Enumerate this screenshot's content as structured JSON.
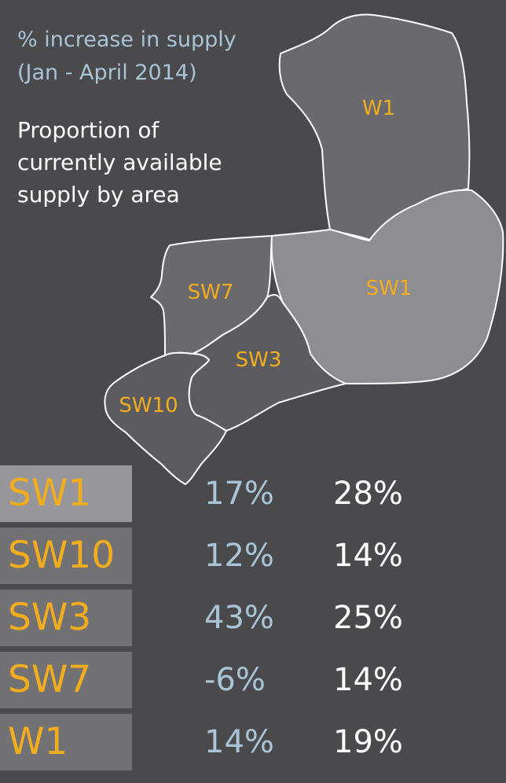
{
  "legend": {
    "increase_line1": "% increase in supply",
    "increase_line2": "(Jan - April 2014)",
    "proportion_lines": [
      "Proportion of",
      "currently available",
      "supply by area"
    ]
  },
  "map": {
    "regions": [
      {
        "id": "W1",
        "label": "W1",
        "fill": "#6a6a6e"
      },
      {
        "id": "SW1",
        "label": "SW1",
        "fill": "#8e8e92"
      },
      {
        "id": "SW7",
        "label": "SW7",
        "fill": "#6a6a6e"
      },
      {
        "id": "SW3",
        "label": "SW3",
        "fill": "#5c5c60"
      },
      {
        "id": "SW10",
        "label": "SW10",
        "fill": "#5c5c60"
      }
    ]
  },
  "table": {
    "rows": [
      {
        "area": "SW1",
        "increase": "17%",
        "proportion": "28%",
        "highlight": true
      },
      {
        "area": "SW10",
        "increase": "12%",
        "proportion": "14%",
        "highlight": false
      },
      {
        "area": "SW3",
        "increase": "43%",
        "proportion": "25%",
        "highlight": false
      },
      {
        "area": "SW7",
        "increase": "-6%",
        "proportion": "14%",
        "highlight": false
      },
      {
        "area": "W1",
        "increase": "14%",
        "proportion": "19%",
        "highlight": false
      }
    ]
  },
  "colors": {
    "background": "#4a4a4c",
    "area_label": "#f2ad1f",
    "increase_text": "#a9c4d6",
    "proportion_text": "#ffffff",
    "row_box": "#727275",
    "row_box_highlight": "#97979b"
  }
}
